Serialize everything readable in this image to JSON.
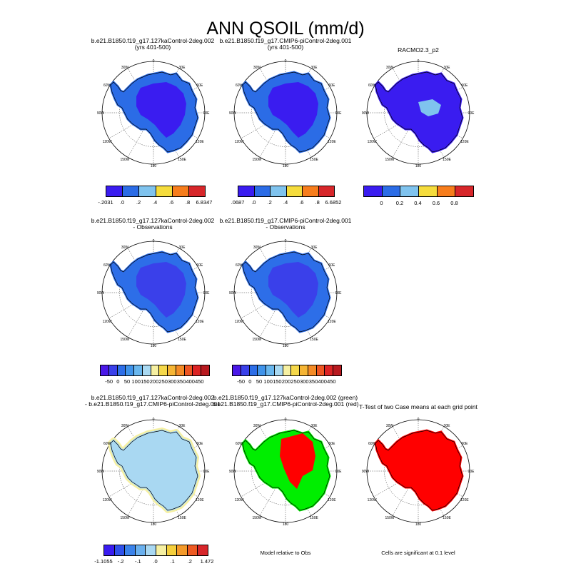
{
  "title": "ANN QSOIL (mm/d)",
  "lon_labels": [
    "0",
    "30E",
    "60E",
    "90E",
    "120E",
    "150E",
    "180",
    "150W",
    "120W",
    "90W",
    "60W",
    "30W"
  ],
  "colors": {
    "abs": [
      "#3a1cf0",
      "#2b6ce6",
      "#7fc3ee",
      "#f5dc3c",
      "#f77d1c",
      "#d7262a"
    ],
    "bias": [
      "#4a18e8",
      "#3a40ea",
      "#2d6ee8",
      "#3f93ea",
      "#69b7ee",
      "#a9d9f2",
      "#f6f0a2",
      "#f5d84a",
      "#f6b534",
      "#f48b26",
      "#ee5622",
      "#dc2324",
      "#b8191f"
    ],
    "diff": [
      "#3a1cf0",
      "#2f50ea",
      "#3a82ea",
      "#6ab0ee",
      "#a9d8f2",
      "#f6f0a2",
      "#f5cf3c",
      "#f49a2a",
      "#ee5a22",
      "#d7262a"
    ],
    "green": "#00ee00",
    "red": "#ff0000"
  },
  "panels": [
    {
      "id": "p1",
      "title1": "b.e21.B1850.f19_g17.127kaControl-2deg.002",
      "title2": "(yrs 401-500)",
      "ticks": [
        "-.2031",
        ".0",
        ".2",
        ".4",
        ".6",
        ".8",
        "6.8347"
      ]
    },
    {
      "id": "p2",
      "title1": "b.e21.B1850.f19_g17.CMIP6-piControl-2deg.001",
      "title2": "(yrs 401-500)",
      "ticks": [
        ".0687",
        ".0",
        ".2",
        ".4",
        ".6",
        ".8",
        "6.6852"
      ]
    },
    {
      "id": "p3",
      "title1": "RACMO2.3_p2",
      "title2": "",
      "ticks": [
        "0",
        "0.2",
        "0.4",
        "0.6",
        "0.8"
      ]
    },
    {
      "id": "p4",
      "title1": "b.e21.B1850.f19_g17.127kaControl-2deg.002",
      "title2": "- Observations",
      "ticks": [
        "-50",
        "0",
        "50",
        "100",
        "150",
        "200",
        "250",
        "300",
        "350",
        "400",
        "450"
      ]
    },
    {
      "id": "p5",
      "title1": "b.e21.B1850.f19_g17.CMIP6-piControl-2deg.001",
      "title2": "- Observations",
      "ticks": [
        "-50",
        "0",
        "50",
        "100",
        "150",
        "200",
        "250",
        "300",
        "350",
        "400",
        "450"
      ]
    },
    {
      "id": "p6",
      "title1": "b.e21.B1850.f19_g17.127kaControl-2deg.002",
      "title2": "- b.e21.B1850.f19_g17.CMIP6-piControl-2deg.001",
      "ticks": [
        "-1.1055",
        "-.2",
        "-.1",
        ".0",
        ".1",
        ".2",
        "1.472"
      ]
    },
    {
      "id": "p7",
      "title1": "b.e21.B1850.f19_g17.127kaControl-2deg.002 (green)",
      "title2": "b.e21.B1850.f19_g17.CMIP6-piControl-2deg.001 (red)",
      "caption": "Model relative to Obs"
    },
    {
      "id": "p8",
      "title1": "T-Test of two Case means at each grid point",
      "title2": "",
      "caption": "Cells are significant at 0.1 level"
    }
  ]
}
